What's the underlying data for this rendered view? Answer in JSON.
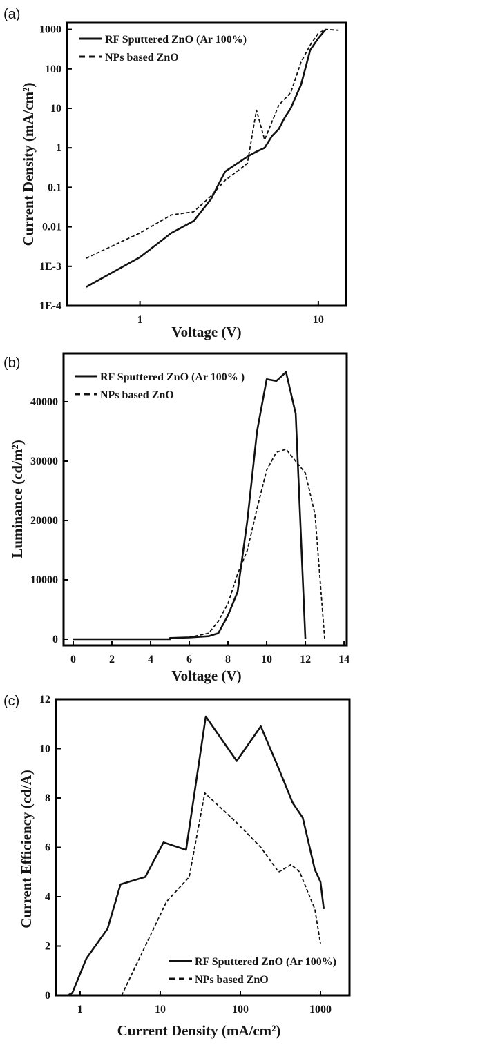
{
  "chart_data": [
    {
      "panel": "(a)",
      "type": "line",
      "xlabel": "Voltage (V)",
      "ylabel": "Current Density (mA/cm²)",
      "xscale": "log",
      "yscale": "log",
      "xlim": [
        0.39,
        14.3
      ],
      "ylim": [
        0.0001,
        1470
      ],
      "xticks": [
        {
          "v": 1,
          "label": "1"
        },
        {
          "v": 10,
          "label": "10"
        }
      ],
      "yticks": [
        {
          "v": 0.0001,
          "label": "1E-4"
        },
        {
          "v": 0.001,
          "label": "1E-3"
        },
        {
          "v": 0.01,
          "label": "0.01"
        },
        {
          "v": 0.1,
          "label": "0.1"
        },
        {
          "v": 1,
          "label": "1"
        },
        {
          "v": 10,
          "label": "10"
        },
        {
          "v": 100,
          "label": "100"
        },
        {
          "v": 1000,
          "label": "1000"
        }
      ],
      "legend_position": "top-left",
      "series": [
        {
          "name": "RF Sputtered ZnO (Ar 100%)",
          "style": "solid",
          "x": [
            0.5,
            1,
            1.5,
            2,
            2.5,
            3,
            4,
            4.5,
            5,
            5.5,
            6,
            6.5,
            7,
            8,
            9,
            10,
            11
          ],
          "y": [
            0.0003,
            0.0017,
            0.007,
            0.014,
            0.05,
            0.25,
            0.6,
            0.8,
            1,
            2,
            3,
            6,
            10,
            40,
            300,
            600,
            1000
          ]
        },
        {
          "name": "NPs based ZnO",
          "style": "dashed",
          "x": [
            0.5,
            1,
            1.5,
            2,
            2.5,
            3,
            4,
            4.5,
            5,
            6,
            7,
            8,
            9,
            10,
            11,
            13
          ],
          "y": [
            0.0016,
            0.007,
            0.02,
            0.024,
            0.06,
            0.15,
            0.4,
            9,
            1.6,
            12,
            25,
            150,
            400,
            800,
            1000,
            950
          ]
        }
      ]
    },
    {
      "panel": "(b)",
      "type": "line",
      "xlabel": "Voltage (V)",
      "ylabel": "Luminance (cd/m²)",
      "xscale": "linear",
      "yscale": "linear",
      "xlim": [
        -0.5,
        14.14
      ],
      "ylim": [
        -1050,
        48140
      ],
      "xticks": [
        {
          "v": 0,
          "label": "0"
        },
        {
          "v": 2,
          "label": "2"
        },
        {
          "v": 4,
          "label": "4"
        },
        {
          "v": 6,
          "label": "6"
        },
        {
          "v": 8,
          "label": "8"
        },
        {
          "v": 10,
          "label": "10"
        },
        {
          "v": 12,
          "label": "12"
        },
        {
          "v": 14,
          "label": "14"
        }
      ],
      "yticks": [
        {
          "v": 0,
          "label": "0"
        },
        {
          "v": 10000,
          "label": "10000"
        },
        {
          "v": 20000,
          "label": "20000"
        },
        {
          "v": 30000,
          "label": "30000"
        },
        {
          "v": 40000,
          "label": "40000"
        }
      ],
      "legend_position": "top-left",
      "series": [
        {
          "name": "RF Sputtered ZnO (Ar 100% )",
          "style": "solid",
          "x": [
            0,
            5,
            5,
            6,
            7,
            7.5,
            8,
            8.5,
            9,
            9.5,
            10,
            10.5,
            11,
            11.5,
            12
          ],
          "y": [
            0,
            0,
            200,
            300,
            500,
            1000,
            4000,
            8000,
            20000,
            35000,
            43800,
            43500,
            45000,
            38000,
            0
          ]
        },
        {
          "name": "NPs based ZnO",
          "style": "dashed",
          "x": [
            6,
            7,
            7.5,
            8,
            8.5,
            9,
            9.5,
            10,
            10.5,
            11,
            11.5,
            12,
            12.5,
            13
          ],
          "y": [
            300,
            1000,
            3000,
            6000,
            11000,
            15000,
            22000,
            28500,
            31500,
            32000,
            30000,
            28000,
            21000,
            0
          ]
        }
      ]
    },
    {
      "panel": "(c)",
      "type": "line",
      "xlabel": "Current Density (mA/cm²)",
      "ylabel": "Current Efficiency (cd/A)",
      "xscale": "log",
      "yscale": "linear",
      "xlim": [
        0.5,
        2300
      ],
      "ylim": [
        0,
        12
      ],
      "xticks": [
        {
          "v": 1,
          "label": "1"
        },
        {
          "v": 10,
          "label": "10"
        },
        {
          "v": 100,
          "label": "100"
        },
        {
          "v": 1000,
          "label": "1000"
        }
      ],
      "yticks": [
        {
          "v": 0,
          "label": "0"
        },
        {
          "v": 2,
          "label": "2"
        },
        {
          "v": 4,
          "label": "4"
        },
        {
          "v": 6,
          "label": "6"
        },
        {
          "v": 8,
          "label": "8"
        },
        {
          "v": 10,
          "label": "10"
        },
        {
          "v": 12,
          "label": "12"
        }
      ],
      "legend_position": "bottom-right",
      "series": [
        {
          "name": "RF Sputtered ZnO (Ar 100%)",
          "style": "solid",
          "x": [
            0.7,
            0.8,
            1.2,
            2.2,
            3.2,
            6.5,
            11,
            21,
            37,
            90,
            180,
            300,
            450,
            600,
            850,
            1000,
            1100
          ],
          "y": [
            0,
            0.1,
            1.5,
            2.7,
            4.5,
            4.8,
            6.2,
            5.9,
            11.3,
            9.5,
            10.9,
            9.2,
            7.8,
            7.2,
            5.1,
            4.6,
            3.5
          ]
        },
        {
          "name": "NPs based ZnO",
          "style": "dashed",
          "x": [
            3.3,
            6.5,
            12,
            23,
            36,
            90,
            180,
            300,
            430,
            550,
            850,
            1000
          ],
          "y": [
            0,
            2,
            3.8,
            4.8,
            8.2,
            7,
            6,
            5,
            5.3,
            5,
            3.5,
            2.1
          ]
        }
      ]
    }
  ],
  "colors": {
    "line": "#111111",
    "text": "#151515"
  }
}
